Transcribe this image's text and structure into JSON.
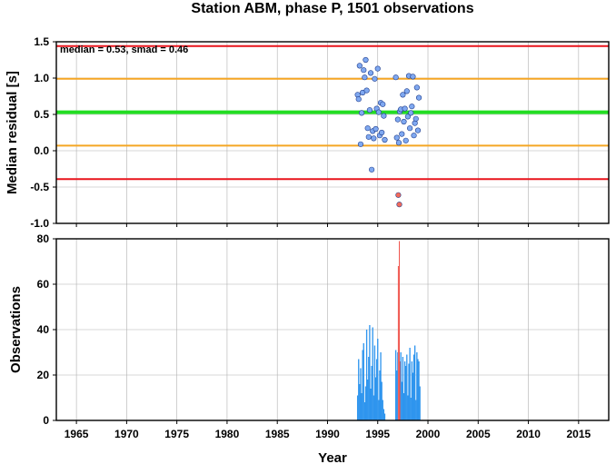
{
  "chart_data": [
    {
      "type": "scatter",
      "title": "Station ABM, phase P, 1501 observations",
      "annotation": "median = 0.53, smad = 0.46",
      "ylabel": "Median residual [s]",
      "xlabel": "",
      "xlim": [
        1963,
        2018
      ],
      "ylim": [
        -1.0,
        1.5
      ],
      "yticks": [
        "-1.0",
        "-0.5",
        "0.0",
        "0.5",
        "1.0",
        "1.5"
      ],
      "grid": true,
      "reference_lines": [
        {
          "y": 1.44,
          "color": "#e8141c"
        },
        {
          "y": 0.99,
          "color": "#f5a623"
        },
        {
          "y": 0.53,
          "color": "#22dd22"
        },
        {
          "y": 0.07,
          "color": "#f5a623"
        },
        {
          "y": -0.39,
          "color": "#e8141c"
        }
      ],
      "series": [
        {
          "color": "#7fa8f0",
          "points": [
            [
              1993.0,
              0.77
            ],
            [
              1993.1,
              0.71
            ],
            [
              1993.2,
              1.17
            ],
            [
              1993.3,
              0.09
            ],
            [
              1993.4,
              0.52
            ],
            [
              1993.5,
              0.8
            ],
            [
              1993.6,
              1.11
            ],
            [
              1993.7,
              1.01
            ],
            [
              1993.8,
              1.25
            ],
            [
              1993.9,
              0.83
            ],
            [
              1994.0,
              0.31
            ],
            [
              1994.1,
              0.19
            ],
            [
              1994.2,
              0.56
            ],
            [
              1994.3,
              1.07
            ],
            [
              1994.4,
              -0.26
            ],
            [
              1994.5,
              0.27
            ],
            [
              1994.6,
              0.17
            ],
            [
              1994.7,
              0.99
            ],
            [
              1994.8,
              0.3
            ],
            [
              1994.9,
              0.58
            ],
            [
              1995.0,
              1.13
            ],
            [
              1995.1,
              0.53
            ],
            [
              1995.2,
              0.21
            ],
            [
              1995.3,
              0.66
            ],
            [
              1995.4,
              0.25
            ],
            [
              1995.5,
              0.64
            ],
            [
              1995.6,
              0.48
            ],
            [
              1995.7,
              0.15
            ],
            [
              1996.8,
              1.01
            ],
            [
              1996.9,
              0.18
            ],
            [
              1997.0,
              0.43
            ],
            [
              1997.1,
              0.11
            ],
            [
              1997.2,
              0.54
            ],
            [
              1997.3,
              0.57
            ],
            [
              1997.4,
              0.23
            ],
            [
              1997.5,
              0.77
            ],
            [
              1997.6,
              0.4
            ],
            [
              1997.7,
              0.58
            ],
            [
              1997.8,
              0.14
            ],
            [
              1997.9,
              0.82
            ],
            [
              1998.0,
              0.47
            ],
            [
              1998.1,
              1.03
            ],
            [
              1998.2,
              0.31
            ],
            [
              1998.3,
              0.52
            ],
            [
              1998.4,
              0.61
            ],
            [
              1998.5,
              1.02
            ],
            [
              1998.6,
              0.21
            ],
            [
              1998.7,
              0.38
            ],
            [
              1998.8,
              0.44
            ],
            [
              1998.9,
              0.87
            ],
            [
              1999.0,
              0.28
            ],
            [
              1999.1,
              0.73
            ]
          ]
        },
        {
          "color": "#f26a5a",
          "points": [
            [
              1997.05,
              -0.61
            ],
            [
              1997.15,
              -0.74
            ]
          ]
        }
      ]
    },
    {
      "type": "bar",
      "title": "",
      "xlabel": "Year",
      "ylabel": "Observations",
      "xlim": [
        1963,
        2018
      ],
      "ylim": [
        0,
        80
      ],
      "yticks": [
        "0",
        "20",
        "40",
        "60",
        "80"
      ],
      "xticks": [
        "1965",
        "1970",
        "1975",
        "1980",
        "1985",
        "1990",
        "1995",
        "2000",
        "2005",
        "2010",
        "2015"
      ],
      "grid": true,
      "series": [
        {
          "color": "#2f95ee",
          "bar_width": 0.12,
          "x": [
            1993.0,
            1993.1,
            1993.2,
            1993.3,
            1993.4,
            1993.5,
            1993.6,
            1993.7,
            1993.8,
            1993.9,
            1994.0,
            1994.1,
            1994.2,
            1994.3,
            1994.4,
            1994.5,
            1994.6,
            1994.7,
            1994.8,
            1994.9,
            1995.0,
            1995.1,
            1995.2,
            1995.3,
            1995.4,
            1995.5,
            1995.6,
            1995.7,
            1996.8,
            1996.9,
            1997.0,
            1997.3,
            1997.4,
            1997.5,
            1997.6,
            1997.7,
            1997.8,
            1997.9,
            1998.0,
            1998.1,
            1998.2,
            1998.3,
            1998.4,
            1998.5,
            1998.6,
            1998.7,
            1998.8,
            1998.9,
            1999.0,
            1999.1,
            1999.2
          ],
          "values": [
            11,
            27,
            16,
            23,
            12,
            31,
            34,
            8,
            15,
            40,
            18,
            28,
            42,
            14,
            24,
            41,
            11,
            33,
            19,
            27,
            36,
            9,
            22,
            30,
            17,
            9,
            5,
            3,
            31,
            22,
            30,
            30,
            17,
            28,
            12,
            26,
            24,
            29,
            11,
            25,
            32,
            10,
            26,
            21,
            29,
            33,
            9,
            30,
            27,
            26,
            15
          ]
        },
        {
          "color": "#f0544c",
          "bar_width": 0.08,
          "x": [
            1997.05,
            1997.15,
            1997.2
          ],
          "values": [
            68,
            79,
            26
          ]
        }
      ]
    }
  ]
}
